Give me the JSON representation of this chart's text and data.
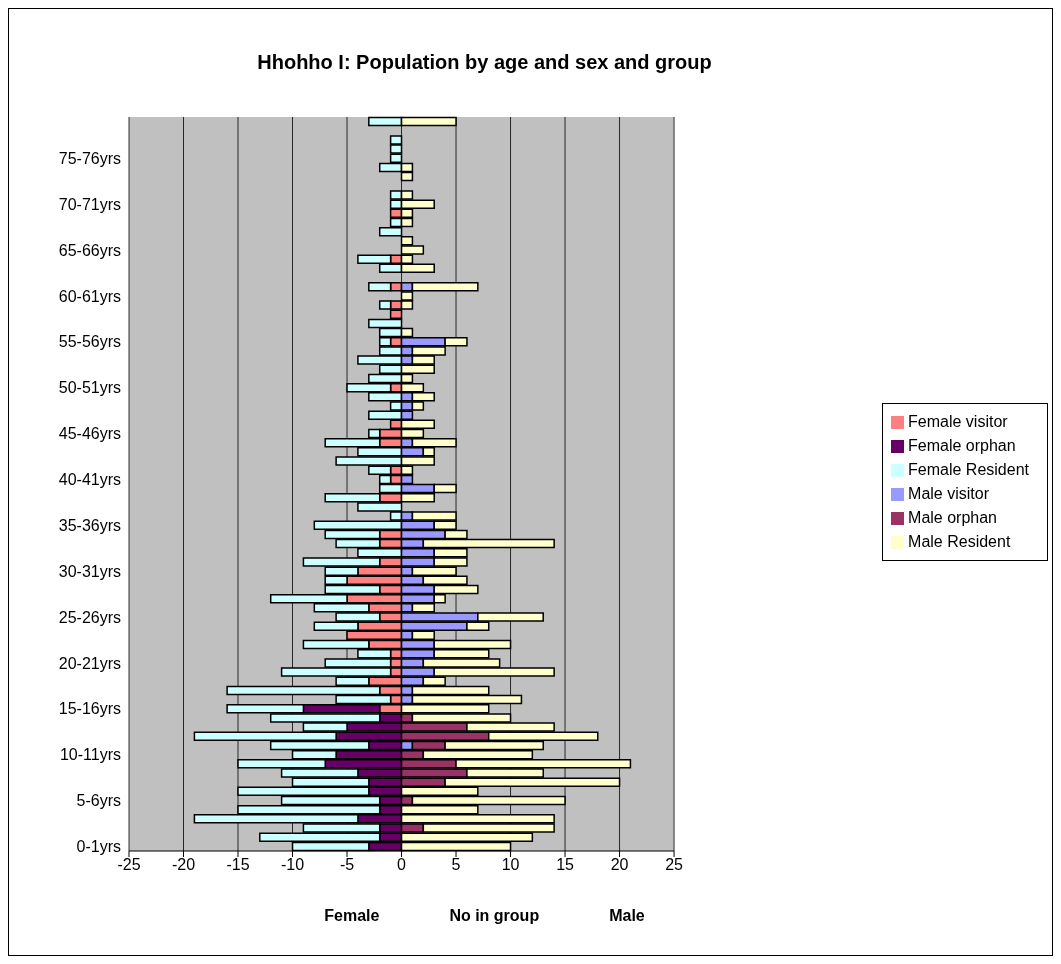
{
  "chart_data": {
    "type": "bar",
    "title": "Hhohho I: Population by age and sex and group",
    "xlabel": "No in group",
    "annotations": [
      "Female",
      "Male"
    ],
    "orientation": "horizontal",
    "stacked": true,
    "grid": "x",
    "legend": "right",
    "xlim": [
      -25,
      25
    ],
    "xticks": [
      -25,
      -20,
      -15,
      -10,
      -5,
      0,
      5,
      10,
      15,
      20,
      25
    ],
    "categories": [
      null,
      null,
      null,
      null,
      "75-76yrs",
      null,
      null,
      null,
      null,
      "70-71yrs",
      null,
      null,
      null,
      null,
      "65-66yrs",
      null,
      null,
      null,
      null,
      "60-61yrs",
      null,
      null,
      null,
      null,
      "55-56yrs",
      null,
      null,
      null,
      null,
      "50-51yrs",
      null,
      null,
      null,
      null,
      "45-46yrs",
      null,
      null,
      null,
      null,
      "40-41yrs",
      null,
      null,
      null,
      null,
      "35-36yrs",
      null,
      null,
      null,
      null,
      "30-31yrs",
      null,
      null,
      null,
      null,
      "25-26yrs",
      null,
      null,
      null,
      null,
      "20-21yrs",
      null,
      null,
      null,
      null,
      "15-16yrs",
      null,
      null,
      null,
      null,
      "10-11yrs",
      null,
      null,
      null,
      null,
      "5-6yrs",
      null,
      null,
      null,
      null,
      "0-1yrs"
    ],
    "series": [
      {
        "name": "Female visitor",
        "color": "#ff8080",
        "values": [
          0,
          0,
          0,
          0,
          0,
          0,
          0,
          0,
          0,
          0,
          -1,
          0,
          0,
          0,
          0,
          -1,
          0,
          0,
          -1,
          0,
          -1,
          -1,
          0,
          0,
          -1,
          0,
          0,
          0,
          0,
          -1,
          0,
          0,
          0,
          -1,
          -2,
          -2,
          0,
          0,
          -1,
          -1,
          0,
          -2,
          0,
          0,
          0,
          -2,
          -2,
          0,
          -2,
          -4,
          -5,
          -2,
          -5,
          -3,
          -2,
          -4,
          -5,
          -3,
          -1,
          -1,
          -1,
          -3,
          -2,
          -1,
          -2,
          0,
          0,
          0,
          0,
          0,
          0,
          0,
          0,
          0,
          0,
          0,
          0,
          0,
          0,
          0
        ]
      },
      {
        "name": "Female orphan",
        "color": "#660066",
        "values": [
          0,
          0,
          0,
          0,
          0,
          0,
          0,
          0,
          0,
          0,
          0,
          0,
          0,
          0,
          0,
          0,
          0,
          0,
          0,
          0,
          0,
          0,
          0,
          0,
          0,
          0,
          0,
          0,
          0,
          0,
          0,
          0,
          0,
          0,
          0,
          0,
          0,
          0,
          0,
          0,
          0,
          0,
          0,
          0,
          0,
          0,
          0,
          0,
          0,
          0,
          0,
          0,
          0,
          0,
          0,
          0,
          0,
          0,
          0,
          0,
          0,
          0,
          0,
          0,
          -7,
          -2,
          -5,
          -6,
          -3,
          -6,
          -7,
          -4,
          -3,
          -3,
          -2,
          -2,
          -4,
          -2,
          -2,
          -3
        ]
      },
      {
        "name": "Female Resident",
        "color": "#ccffff",
        "values": [
          -3,
          0,
          -1,
          -1,
          -1,
          -2,
          0,
          0,
          -1,
          -1,
          0,
          -1,
          -2,
          0,
          0,
          -3,
          -2,
          0,
          -2,
          0,
          -1,
          0,
          -3,
          -2,
          -1,
          -2,
          -4,
          -2,
          -3,
          -4,
          -3,
          -1,
          -3,
          0,
          -1,
          -5,
          -4,
          -6,
          -2,
          -1,
          -2,
          -5,
          -4,
          -1,
          -8,
          -5,
          -4,
          -4,
          -7,
          -3,
          -2,
          -5,
          -7,
          -5,
          -4,
          -4,
          0,
          -6,
          -3,
          -6,
          -10,
          -3,
          -14,
          -5,
          -7,
          -10,
          -4,
          -13,
          -9,
          -4,
          -8,
          -7,
          -7,
          -12,
          -9,
          -13,
          -15,
          -7,
          -11,
          -7
        ]
      },
      {
        "name": "Male visitor",
        "color": "#9999ff",
        "values": [
          0,
          0,
          0,
          0,
          0,
          0,
          0,
          0,
          0,
          0,
          0,
          0,
          0,
          0,
          0,
          0,
          0,
          0,
          1,
          0,
          0,
          0,
          0,
          0,
          4,
          1,
          1,
          0,
          0,
          0,
          1,
          1,
          1,
          0,
          0,
          1,
          2,
          0,
          0,
          1,
          3,
          0,
          0,
          1,
          3,
          4,
          2,
          3,
          3,
          1,
          2,
          3,
          3,
          1,
          7,
          6,
          1,
          3,
          3,
          2,
          3,
          2,
          1,
          1,
          0,
          0,
          0,
          0,
          1,
          0,
          0,
          0,
          0,
          0,
          0,
          0,
          0,
          0,
          0,
          0
        ]
      },
      {
        "name": "Male orphan",
        "color": "#993366",
        "values": [
          0,
          0,
          0,
          0,
          0,
          0,
          0,
          0,
          0,
          0,
          0,
          0,
          0,
          0,
          0,
          0,
          0,
          0,
          0,
          0,
          0,
          0,
          0,
          0,
          0,
          0,
          0,
          0,
          0,
          0,
          0,
          0,
          0,
          0,
          0,
          0,
          0,
          0,
          0,
          0,
          0,
          0,
          0,
          0,
          0,
          0,
          0,
          0,
          0,
          0,
          0,
          0,
          0,
          0,
          0,
          0,
          0,
          0,
          0,
          0,
          0,
          0,
          0,
          0,
          0,
          1,
          6,
          8,
          3,
          2,
          5,
          6,
          4,
          0,
          1,
          0,
          0,
          2,
          0,
          0
        ]
      },
      {
        "name": "Male Resident",
        "color": "#ffffcc",
        "values": [
          5,
          0,
          0,
          0,
          0,
          1,
          1,
          0,
          1,
          3,
          1,
          1,
          0,
          1,
          2,
          1,
          3,
          0,
          6,
          1,
          1,
          0,
          0,
          1,
          2,
          3,
          2,
          3,
          1,
          2,
          2,
          1,
          0,
          3,
          2,
          4,
          1,
          3,
          1,
          0,
          2,
          3,
          0,
          4,
          2,
          2,
          12,
          3,
          3,
          4,
          4,
          4,
          1,
          2,
          6,
          2,
          2,
          7,
          5,
          7,
          11,
          2,
          7,
          10,
          8,
          9,
          8,
          10,
          9,
          10,
          16,
          7,
          16,
          7,
          14,
          7,
          14,
          12,
          12,
          10
        ]
      }
    ]
  }
}
